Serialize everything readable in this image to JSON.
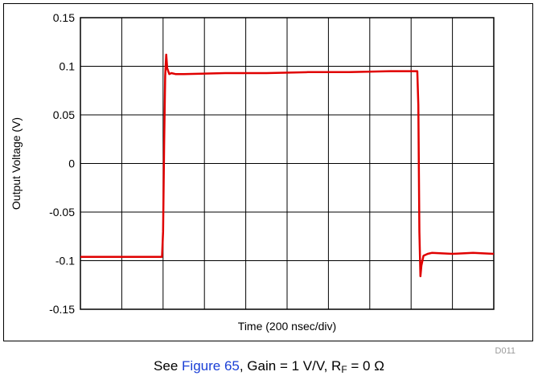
{
  "chart_data": {
    "type": "line",
    "title": "",
    "xlabel": "Time (200 nsec/div)",
    "ylabel": "Output Voltage (V)",
    "ylim": [
      -0.15,
      0.15
    ],
    "yticks": [
      0.15,
      0.1,
      0.05,
      0,
      -0.05,
      -0.1,
      -0.15
    ],
    "ytick_labels": [
      "0.15",
      "0.1",
      "0.05",
      "0",
      "-0.05",
      "-0.1",
      "-0.15"
    ],
    "xlim": [
      0,
      2000
    ],
    "x_unit": "nsec",
    "x_divisions": 10,
    "grid": true,
    "series": [
      {
        "color": "#e00000",
        "x": [
          0,
          300,
          395,
          400,
          405,
          410,
          415,
          420,
          430,
          440,
          460,
          500,
          700,
          900,
          1100,
          1300,
          1500,
          1600,
          1620,
          1630,
          1635,
          1640,
          1645,
          1650,
          1660,
          1680,
          1700,
          1800,
          1900,
          2000
        ],
        "y": [
          -0.096,
          -0.096,
          -0.096,
          -0.07,
          0.02,
          0.09,
          0.112,
          0.098,
          0.092,
          0.093,
          0.092,
          0.092,
          0.093,
          0.093,
          0.094,
          0.094,
          0.095,
          0.095,
          0.095,
          0.095,
          0.06,
          -0.07,
          -0.116,
          -0.105,
          -0.095,
          -0.093,
          -0.092,
          -0.093,
          -0.092,
          -0.093
        ]
      }
    ],
    "watermark": "D011"
  },
  "caption": {
    "prefix": "See ",
    "link": "Figure 65",
    "middle": ", Gain = 1 V/V, R",
    "subscript": "F",
    "suffix": " = 0 Ω"
  }
}
